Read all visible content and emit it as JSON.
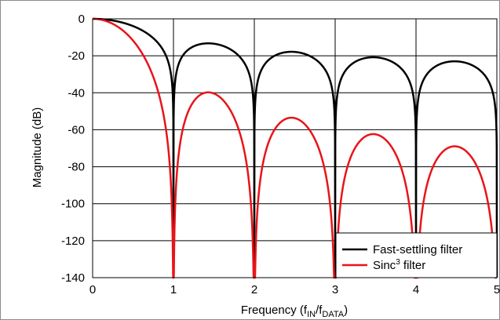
{
  "chart_data": {
    "type": "line",
    "xlabel": "Frequency (fIN/fDATA)",
    "xlabel_parts": {
      "prefix": "Frequency (f",
      "sub1": "IN",
      "mid": "/f",
      "sub2": "DATA",
      "suffix": ")"
    },
    "ylabel": "Magnitude (dB)",
    "xlim": [
      0,
      5
    ],
    "ylim": [
      -140,
      0
    ],
    "x_ticks": [
      "0",
      "1",
      "2",
      "3",
      "4",
      "5"
    ],
    "y_ticks": [
      "0",
      "-20",
      "-40",
      "-60",
      "-80",
      "-100",
      "-120",
      "-140"
    ],
    "grid": true,
    "legend_position": "bottom-right",
    "series": [
      {
        "name": "Fast-settling filter",
        "legend_parts": {
          "text": "Fast-settling filter",
          "sup": "",
          "after": ""
        },
        "color": "#000000",
        "description_points": [
          [
            0,
            0
          ],
          [
            0.5,
            -3.9
          ],
          [
            1,
            -140
          ],
          [
            1.43,
            -13.5
          ],
          [
            2,
            -140
          ],
          [
            2.46,
            -18
          ],
          [
            3,
            -140
          ],
          [
            3.47,
            -21
          ],
          [
            4,
            -140
          ],
          [
            4.48,
            -23
          ],
          [
            5,
            -140
          ]
        ]
      },
      {
        "name": "Sinc3 filter",
        "legend_parts": {
          "text": "Sinc",
          "sup": "3",
          "after": " filter"
        },
        "color": "#e8141a",
        "description_points": [
          [
            0,
            0
          ],
          [
            0.5,
            -11.7
          ],
          [
            1,
            -140
          ],
          [
            1.43,
            -40.4
          ],
          [
            2,
            -140
          ],
          [
            2.46,
            -53.7
          ],
          [
            3,
            -140
          ],
          [
            3.47,
            -62.6
          ],
          [
            4,
            -140
          ],
          [
            4.48,
            -69.2
          ],
          [
            5,
            -140
          ]
        ]
      }
    ]
  }
}
